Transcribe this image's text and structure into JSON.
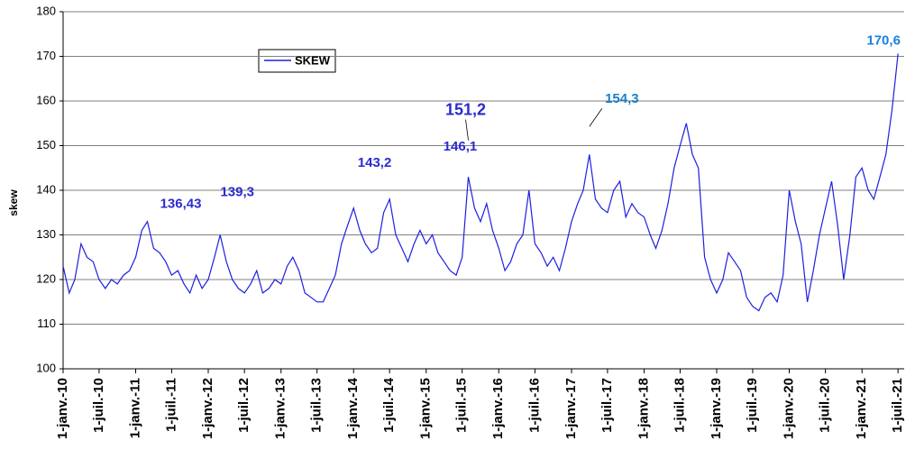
{
  "chart_data": {
    "type": "line",
    "ylabel": "skew",
    "ylim": [
      100,
      180
    ],
    "yticks": [
      100,
      110,
      120,
      130,
      140,
      150,
      160,
      170,
      180
    ],
    "xlim": [
      "2010-01-01",
      "2021-08-01"
    ],
    "xticks": [
      {
        "value": "2010-01-01",
        "label": "1-janv.-10"
      },
      {
        "value": "2010-07-01",
        "label": "1-juil.-10"
      },
      {
        "value": "2011-01-01",
        "label": "1-janv.-11"
      },
      {
        "value": "2011-07-01",
        "label": "1-juil.-11"
      },
      {
        "value": "2012-01-01",
        "label": "1-janv.-12"
      },
      {
        "value": "2012-07-01",
        "label": "1-juil.-12"
      },
      {
        "value": "2013-01-01",
        "label": "1-janv.-13"
      },
      {
        "value": "2013-07-01",
        "label": "1-juil.-13"
      },
      {
        "value": "2014-01-01",
        "label": "1-janv.-14"
      },
      {
        "value": "2014-07-01",
        "label": "1-juil.-14"
      },
      {
        "value": "2015-01-01",
        "label": "1-janv.-15"
      },
      {
        "value": "2015-07-01",
        "label": "1-juil.-15"
      },
      {
        "value": "2016-01-01",
        "label": "1-janv.-16"
      },
      {
        "value": "2016-07-01",
        "label": "1-juil.-16"
      },
      {
        "value": "2017-01-01",
        "label": "1-janv.-17"
      },
      {
        "value": "2017-07-01",
        "label": "1-juil.-17"
      },
      {
        "value": "2018-01-01",
        "label": "1-janv.-18"
      },
      {
        "value": "2018-07-01",
        "label": "1-juil.-18"
      },
      {
        "value": "2019-01-01",
        "label": "1-janv.-19"
      },
      {
        "value": "2019-07-01",
        "label": "1-juil.-19"
      },
      {
        "value": "2020-01-01",
        "label": "1-janv.-20"
      },
      {
        "value": "2020-07-01",
        "label": "1-juil.-20"
      },
      {
        "value": "2021-01-01",
        "label": "1-janv.-21"
      },
      {
        "value": "2021-07-01",
        "label": "1-juil.-21"
      }
    ],
    "grid": true,
    "legend": "top-left",
    "x": [
      "2010-01-01",
      "2010-02-01",
      "2010-03-01",
      "2010-04-01",
      "2010-05-01",
      "2010-06-01",
      "2010-07-01",
      "2010-08-01",
      "2010-09-01",
      "2010-10-01",
      "2010-11-01",
      "2010-12-01",
      "2011-01-01",
      "2011-02-01",
      "2011-03-01",
      "2011-04-01",
      "2011-05-01",
      "2011-06-01",
      "2011-07-01",
      "2011-08-01",
      "2011-09-01",
      "2011-10-01",
      "2011-11-01",
      "2011-12-01",
      "2012-01-01",
      "2012-02-01",
      "2012-03-01",
      "2012-04-01",
      "2012-05-01",
      "2012-06-01",
      "2012-07-01",
      "2012-08-01",
      "2012-09-01",
      "2012-10-01",
      "2012-11-01",
      "2012-12-01",
      "2013-01-01",
      "2013-02-01",
      "2013-03-01",
      "2013-04-01",
      "2013-05-01",
      "2013-06-01",
      "2013-07-01",
      "2013-08-01",
      "2013-09-01",
      "2013-10-01",
      "2013-11-01",
      "2013-12-01",
      "2014-01-01",
      "2014-02-01",
      "2014-03-01",
      "2014-04-01",
      "2014-05-01",
      "2014-06-01",
      "2014-07-01",
      "2014-08-01",
      "2014-09-01",
      "2014-10-01",
      "2014-11-01",
      "2014-12-01",
      "2015-01-01",
      "2015-02-01",
      "2015-03-01",
      "2015-04-01",
      "2015-05-01",
      "2015-06-01",
      "2015-07-01",
      "2015-08-01",
      "2015-09-01",
      "2015-10-01",
      "2015-11-01",
      "2015-12-01",
      "2016-01-01",
      "2016-02-01",
      "2016-03-01",
      "2016-04-01",
      "2016-05-01",
      "2016-06-01",
      "2016-07-01",
      "2016-08-01",
      "2016-09-01",
      "2016-10-01",
      "2016-11-01",
      "2016-12-01",
      "2017-01-01",
      "2017-02-01",
      "2017-03-01",
      "2017-04-01",
      "2017-05-01",
      "2017-06-01",
      "2017-07-01",
      "2017-08-01",
      "2017-09-01",
      "2017-10-01",
      "2017-11-01",
      "2017-12-01",
      "2018-01-01",
      "2018-02-01",
      "2018-03-01",
      "2018-04-01",
      "2018-05-01",
      "2018-06-01",
      "2018-07-01",
      "2018-08-01",
      "2018-09-01",
      "2018-10-01",
      "2018-11-01",
      "2018-12-01",
      "2019-01-01",
      "2019-02-01",
      "2019-03-01",
      "2019-04-01",
      "2019-05-01",
      "2019-06-01",
      "2019-07-01",
      "2019-08-01",
      "2019-09-01",
      "2019-10-01",
      "2019-11-01",
      "2019-12-01",
      "2020-01-01",
      "2020-02-01",
      "2020-03-01",
      "2020-04-01",
      "2020-05-01",
      "2020-06-01",
      "2020-07-01",
      "2020-08-01",
      "2020-09-01",
      "2020-10-01",
      "2020-11-01",
      "2020-12-01",
      "2021-01-01",
      "2021-02-01",
      "2021-03-01",
      "2021-04-01",
      "2021-05-01",
      "2021-06-01",
      "2021-07-01"
    ],
    "series": [
      {
        "name": "SKEW",
        "color": "#1f1fe0",
        "values": [
          123,
          117,
          120,
          128,
          125,
          124,
          120,
          118,
          120,
          119,
          121,
          122,
          125,
          131,
          133,
          127,
          126,
          124,
          121,
          122,
          119,
          117,
          121,
          118,
          120,
          125,
          130,
          124,
          120,
          118,
          117,
          119,
          122,
          117,
          118,
          120,
          119,
          123,
          125,
          122,
          117,
          116,
          115,
          115,
          118,
          121,
          128,
          132,
          136,
          131,
          128,
          126,
          127,
          135,
          138,
          130,
          127,
          124,
          128,
          131,
          128,
          130,
          126,
          124,
          122,
          121,
          125,
          143,
          136,
          133,
          137,
          131,
          127,
          122,
          124,
          128,
          130,
          140,
          128,
          126,
          123,
          125,
          122,
          127,
          133,
          137,
          140,
          148,
          138,
          136,
          135,
          140,
          142,
          134,
          137,
          135,
          134,
          130,
          127,
          131,
          137,
          145,
          150,
          155,
          148,
          145,
          125,
          120,
          117,
          120,
          126,
          124,
          122,
          116,
          114,
          113,
          116,
          117,
          115,
          121,
          140,
          133,
          128,
          115,
          122,
          130,
          136,
          142,
          132,
          120,
          130,
          143,
          145,
          140,
          138,
          143,
          148,
          158,
          170.6
        ]
      }
    ],
    "annotations": [
      {
        "x": "2011-03-01",
        "value": 136.43,
        "label": "136,43",
        "color": "#2b2bd0"
      },
      {
        "x": "2012-03-01",
        "value": 139.3,
        "label": "139,3",
        "color": "#2b2bd0"
      },
      {
        "x": "2014-06-01",
        "value": 143.2,
        "label": "143,2",
        "color": "#2b2bd0"
      },
      {
        "x": "2014-10-01",
        "value": 146.1,
        "label": "146,1",
        "color": "#2b2bd0"
      },
      {
        "x": "2015-08-01",
        "value": 151.2,
        "label": "151,2",
        "color": "#2b2bd0"
      },
      {
        "x": "2017-04-01",
        "value": 154.3,
        "label": "154,3",
        "color": "#1a80c8"
      },
      {
        "x": "2021-07-01",
        "value": 170.6,
        "label": "170,6",
        "color": "#1a80e0"
      }
    ]
  }
}
